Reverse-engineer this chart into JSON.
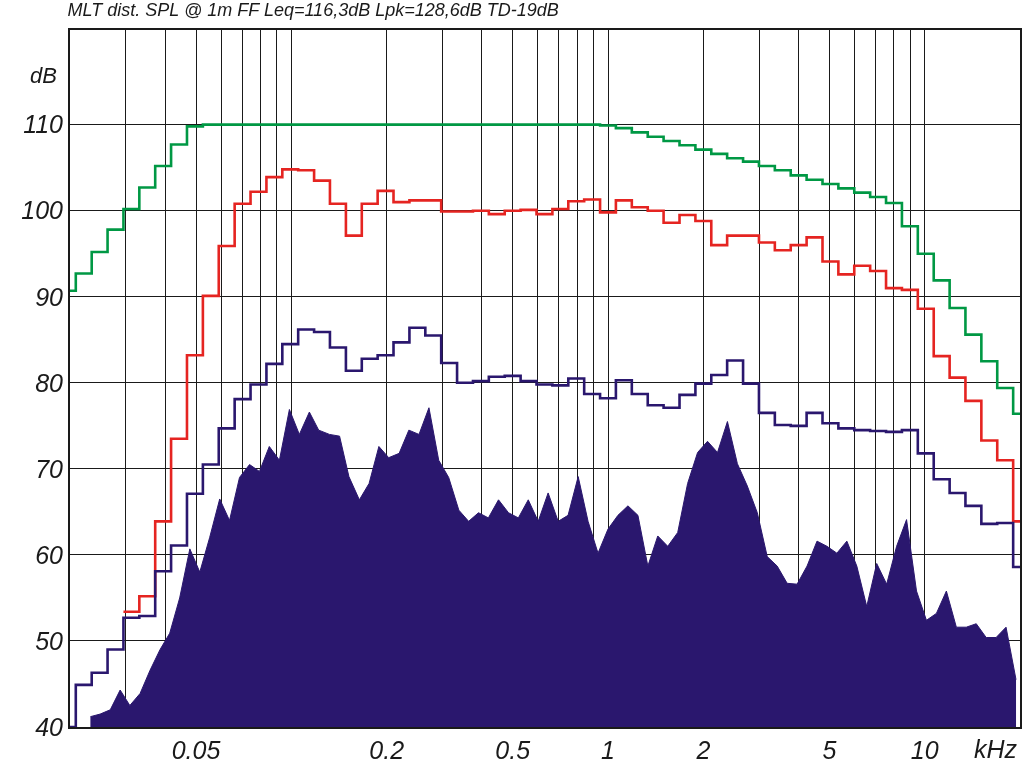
{
  "chart_data": {
    "type": "step",
    "title": "MLT dist. SPL @ 1m FF Leq=116,3dB Lpk=128,6dB TD-19dB",
    "ylabel": "dB",
    "xlabel": "kHz",
    "log": "x",
    "grid": true,
    "xlim": [
      0.02,
      20
    ],
    "ylim": [
      40,
      121
    ],
    "xticks": [
      {
        "value": 0.03,
        "label": null
      },
      {
        "value": 0.04,
        "label": null
      },
      0.05,
      {
        "value": 0.06,
        "label": null
      },
      {
        "value": 0.07,
        "label": null
      },
      {
        "value": 0.08,
        "label": null
      },
      {
        "value": 0.09,
        "label": null
      },
      {
        "value": 0.1,
        "label": null
      },
      0.2,
      {
        "value": 0.3,
        "label": null
      },
      {
        "value": 0.4,
        "label": null
      },
      0.5,
      {
        "value": 0.6,
        "label": null
      },
      {
        "value": 0.7,
        "label": null
      },
      {
        "value": 0.8,
        "label": null
      },
      {
        "value": 0.9,
        "label": null
      },
      1,
      2,
      {
        "value": 3,
        "label": null
      },
      {
        "value": 4,
        "label": null
      },
      5,
      {
        "value": 6,
        "label": null
      },
      {
        "value": 7,
        "label": null
      },
      {
        "value": 8,
        "label": null
      },
      {
        "value": 9,
        "label": null
      },
      10
    ],
    "yticks": [
      40,
      50,
      60,
      70,
      80,
      90,
      100,
      110
    ],
    "x": [
      0.02,
      0.02086,
      0.02342,
      0.02628,
      0.0295,
      0.03311,
      0.03716,
      0.04171,
      0.04682,
      0.05256,
      0.05899,
      0.06622,
      0.07433,
      0.08343,
      0.09365,
      0.1051,
      0.118,
      0.1324,
      0.1487,
      0.1669,
      0.1873,
      0.2102,
      0.236,
      0.2649,
      0.2973,
      0.3337,
      0.3746,
      0.4204,
      0.4719,
      0.5297,
      0.5946,
      0.6674,
      0.7492,
      0.8409,
      0.9439,
      1.059,
      1.189,
      1.335,
      1.498,
      1.682,
      1.888,
      2.119,
      2.378,
      2.67,
      2.997,
      3.364,
      3.776,
      4.238,
      4.757,
      5.339,
      5.993,
      6.727,
      7.551,
      8.476,
      9.514,
      10.68,
      11.99,
      13.45,
      15.1,
      16.95,
      19.03,
      20
    ],
    "series": [
      {
        "type": "area",
        "color": "#2a176e",
        "x": [
          0.0232,
          0.0249,
          0.0268,
          0.0288,
          0.0309,
          0.0333,
          0.0358,
          0.0385,
          0.0413,
          0.0444,
          0.0478,
          0.0514,
          0.0552,
          0.0594,
          0.0638,
          0.0686,
          0.0738,
          0.0793,
          0.0852,
          0.0917,
          0.0986,
          0.106,
          0.114,
          0.122,
          0.132,
          0.142,
          0.152,
          0.164,
          0.176,
          0.189,
          0.203,
          0.219,
          0.235,
          0.253,
          0.272,
          0.292,
          0.314,
          0.338,
          0.363,
          0.39,
          0.419,
          0.451,
          0.485,
          0.521,
          0.56,
          0.602,
          0.647,
          0.696,
          0.748,
          0.805,
          0.865,
          0.93,
          1.0,
          1.075,
          1.156,
          1.243,
          1.336,
          1.436,
          1.544,
          1.66,
          1.784,
          1.918,
          2.062,
          2.217,
          2.383,
          2.562,
          2.754,
          2.961,
          3.183,
          3.422,
          3.679,
          3.955,
          4.252,
          4.571,
          4.914,
          5.282,
          5.679,
          6.105,
          6.563,
          7.055,
          7.585,
          8.154,
          8.765,
          9.423,
          10.13,
          10.89,
          11.71,
          12.59,
          13.53,
          14.55,
          15.64,
          16.81,
          18.07,
          19.43
        ],
        "values": [
          41.2,
          41.5,
          42,
          44.3,
          42.5,
          43.9,
          46.6,
          49.0,
          50.9,
          55,
          60.7,
          58,
          62,
          66.5,
          64,
          69,
          70.5,
          69.7,
          72.6,
          71,
          76.9,
          74,
          76.6,
          74.5,
          74,
          73.8,
          69.1,
          66.4,
          68.3,
          72.6,
          71.3,
          71.8,
          74.5,
          74,
          77.1,
          71,
          69,
          65.2,
          63.9,
          64.9,
          64.3,
          66.4,
          64.9,
          64.3,
          66.4,
          63.9,
          67.2,
          63.9,
          64.6,
          69.1,
          63.9,
          60.2,
          63,
          64.6,
          65.7,
          64.6,
          58.7,
          62.2,
          61,
          62.6,
          68.3,
          71.9,
          73.2,
          71.9,
          75.5,
          70.6,
          68,
          64.9,
          59.8,
          58.7,
          56.7,
          56.6,
          58.7,
          61.6,
          61,
          60.2,
          61.6,
          58.7,
          54,
          59,
          56.6,
          61,
          64.1,
          55.8,
          52.4,
          53.2,
          55.8,
          51.6,
          51.6,
          52,
          50.4,
          50.4,
          51.6,
          45.5
        ]
      },
      {
        "color": "#009844",
        "values": [
          90.7,
          92.7,
          95.2,
          97.8,
          100.2,
          102.7,
          105.2,
          107.7,
          109.8,
          110,
          110,
          110,
          110,
          110,
          110,
          110,
          110,
          110,
          110,
          110,
          110,
          110,
          110,
          110,
          110,
          110,
          110,
          110,
          110,
          110,
          110,
          110,
          110,
          110,
          109.9,
          109.6,
          109.1,
          108.6,
          108.1,
          107.6,
          107.1,
          106.6,
          106.1,
          105.7,
          105.2,
          104.7,
          104.1,
          103.6,
          103.1,
          102.6,
          102.1,
          101.6,
          100.9,
          98.2,
          95.0,
          91.9,
          88.7,
          85.6,
          82.5,
          79.4,
          76.4,
          76.4
        ]
      },
      {
        "color": "#e52421",
        "values": [
          null,
          null,
          null,
          null,
          53.4,
          55.2,
          63.9,
          73.5,
          83.2,
          90.1,
          95.9,
          100.8,
          102.2,
          103.9,
          104.8,
          104.7,
          103.5,
          100.8,
          97.1,
          100.8,
          102.3,
          101.0,
          101.2,
          101.2,
          99.9,
          99.9,
          100.0,
          99.6,
          100.0,
          100.1,
          99.6,
          100.2,
          101.1,
          101.3,
          99.8,
          101.2,
          100.4,
          100.0,
          98.6,
          99.5,
          98.8,
          96.0,
          97.1,
          97.1,
          96.3,
          95.4,
          96.0,
          96.9,
          94.1,
          92.6,
          93.6,
          93.0,
          91.0,
          90.8,
          88.6,
          83.1,
          80.6,
          77.9,
          73.3,
          71.0,
          63.9,
          63.9
        ]
      },
      {
        "color": "#2a176e",
        "values": [
          40,
          44.9,
          46.3,
          49.0,
          52.7,
          52.9,
          58.1,
          61.1,
          67.1,
          70.5,
          74.7,
          78.1,
          79.8,
          82.2,
          84.5,
          86.2,
          85.9,
          84.1,
          81.4,
          82.8,
          83.2,
          84.7,
          86.4,
          85.5,
          82.3,
          80.0,
          80.2,
          80.7,
          80.8,
          80.2,
          79.8,
          79.7,
          80.5,
          78.7,
          78.2,
          80.3,
          78.7,
          77.4,
          77.1,
          78.6,
          79.9,
          80.9,
          82.6,
          79.9,
          76.5,
          75.1,
          75.0,
          76.5,
          75.3,
          74.7,
          74.5,
          74.4,
          74.3,
          74.5,
          71.8,
          68.8,
          67.2,
          65.7,
          63.6,
          63.7,
          58.6,
          58.6
        ]
      }
    ]
  }
}
